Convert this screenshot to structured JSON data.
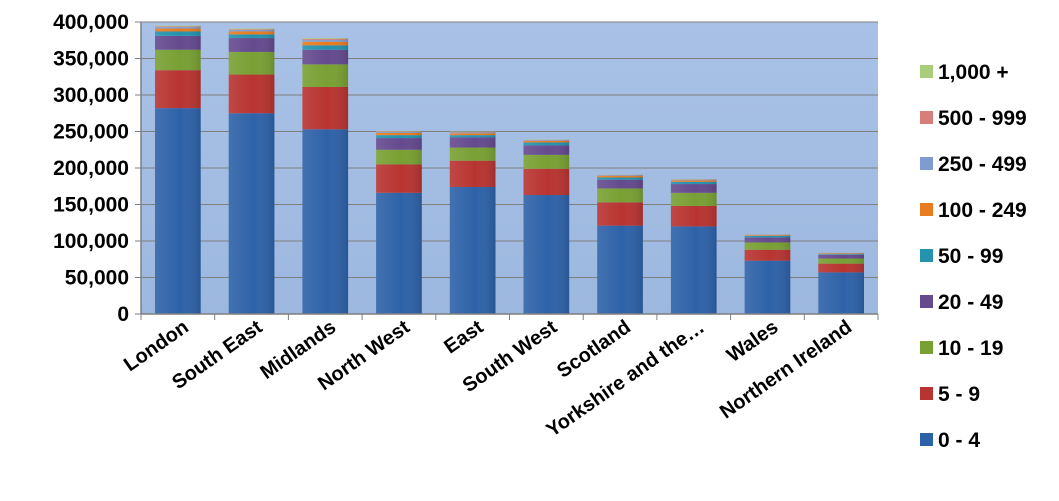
{
  "chart_data": {
    "type": "bar",
    "stacked": true,
    "categories": [
      "London",
      "South East",
      "Midlands",
      "North West",
      "East",
      "South West",
      "Scotland",
      "Yorkshire and the…",
      "Wales",
      "Northern Ireland"
    ],
    "ylim": [
      0,
      400000
    ],
    "yticks": [
      "0",
      "50,000",
      "100,000",
      "150,000",
      "200,000",
      "250,000",
      "300,000",
      "350,000",
      "400,000"
    ],
    "grid": true,
    "legend_position": "right",
    "plot_background": "#a4bde3",
    "series": [
      {
        "name": "0 - 4",
        "color": "#2e62a8",
        "values": [
          282000,
          275000,
          253000,
          166000,
          174000,
          163000,
          121000,
          120000,
          73000,
          57000
        ]
      },
      {
        "name": "5 - 9",
        "color": "#b83431",
        "values": [
          52000,
          53000,
          58000,
          39000,
          36000,
          36000,
          32000,
          28000,
          15000,
          12000
        ]
      },
      {
        "name": "10 - 19",
        "color": "#78a033",
        "values": [
          28000,
          31000,
          31000,
          20000,
          18000,
          19000,
          19000,
          18000,
          10000,
          7000
        ]
      },
      {
        "name": "20 - 49",
        "color": "#654a8e",
        "values": [
          19000,
          19000,
          20000,
          16000,
          14000,
          13000,
          12000,
          12000,
          7000,
          5000
        ]
      },
      {
        "name": "50 - 99",
        "color": "#2592ae",
        "values": [
          6000,
          5000,
          6000,
          4000,
          3000,
          4000,
          3000,
          3000,
          2000,
          1000
        ]
      },
      {
        "name": "100 - 249",
        "color": "#e87c1e",
        "values": [
          4000,
          4000,
          5000,
          3000,
          2500,
          2000,
          2000,
          2000,
          1000,
          1000
        ]
      },
      {
        "name": "250 - 499",
        "color": "#7e9ccf",
        "values": [
          2000,
          2000,
          2500,
          1500,
          1200,
          1000,
          1000,
          1000,
          500,
          500
        ]
      },
      {
        "name": "500 - 999",
        "color": "#d97d7b",
        "values": [
          1000,
          1000,
          1500,
          700,
          600,
          500,
          500,
          500,
          300,
          200
        ]
      },
      {
        "name": "1,000 +",
        "color": "#aacd7c",
        "values": [
          1000,
          1000,
          1000,
          600,
          500,
          500,
          400,
          400,
          200,
          100
        ]
      }
    ]
  }
}
